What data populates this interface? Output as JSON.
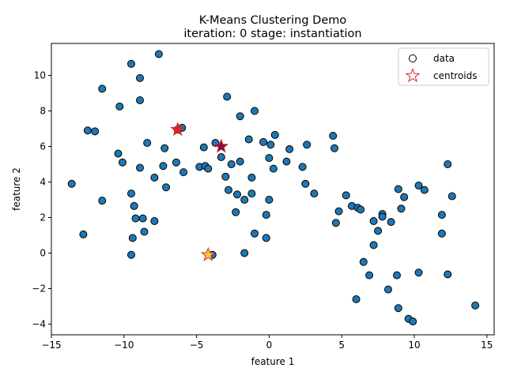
{
  "chart_data": {
    "type": "scatter",
    "title": "K-Means Clustering Demo",
    "subtitle": "iteration: 0 stage: instantiation",
    "xlabel": "feature 1",
    "ylabel": "feature 2",
    "xlim": [
      -15,
      15.5
    ],
    "ylim": [
      -4.6,
      11.8
    ],
    "xticks": [
      -15,
      -10,
      -5,
      0,
      5,
      10,
      15
    ],
    "yticks": [
      -4,
      -2,
      0,
      2,
      4,
      6,
      8,
      10
    ],
    "grid": false,
    "legend": {
      "position": "top-right",
      "entries": [
        "data",
        "centroids"
      ]
    },
    "colors": {
      "data_fill": "#1f77b4",
      "data_edge": "#000000",
      "centroid_edge": "#d62728"
    },
    "series": [
      {
        "name": "data",
        "points": [
          [
            -13.6,
            3.9
          ],
          [
            -12.8,
            1.05
          ],
          [
            -12.5,
            6.9
          ],
          [
            -12.0,
            6.85
          ],
          [
            -11.5,
            9.25
          ],
          [
            -11.5,
            2.95
          ],
          [
            -10.4,
            5.6
          ],
          [
            -10.3,
            8.25
          ],
          [
            -10.1,
            5.1
          ],
          [
            -9.5,
            10.65
          ],
          [
            -9.5,
            3.35
          ],
          [
            -9.5,
            -0.1
          ],
          [
            -9.4,
            0.85
          ],
          [
            -9.3,
            2.65
          ],
          [
            -9.2,
            1.95
          ],
          [
            -8.9,
            9.85
          ],
          [
            -8.9,
            8.6
          ],
          [
            -8.9,
            4.8
          ],
          [
            -8.7,
            1.95
          ],
          [
            -8.6,
            1.2
          ],
          [
            -8.4,
            6.2
          ],
          [
            -7.9,
            4.25
          ],
          [
            -7.9,
            1.8
          ],
          [
            -7.6,
            11.2
          ],
          [
            -7.3,
            4.9
          ],
          [
            -7.2,
            5.9
          ],
          [
            -7.1,
            3.7
          ],
          [
            -6.4,
            5.1
          ],
          [
            -6.3,
            6.95
          ],
          [
            -6.0,
            7.05
          ],
          [
            -5.9,
            4.55
          ],
          [
            -4.8,
            4.85
          ],
          [
            -4.5,
            5.95
          ],
          [
            -4.4,
            4.9
          ],
          [
            -4.2,
            4.75
          ],
          [
            -3.9,
            -0.1
          ],
          [
            -3.7,
            6.2
          ],
          [
            -3.3,
            5.4
          ],
          [
            -3.0,
            4.3
          ],
          [
            -2.9,
            8.8
          ],
          [
            -2.8,
            3.55
          ],
          [
            -2.6,
            5.0
          ],
          [
            -2.3,
            2.3
          ],
          [
            -2.2,
            3.3
          ],
          [
            -2.0,
            5.15
          ],
          [
            -2.0,
            7.7
          ],
          [
            -1.7,
            3.0
          ],
          [
            -1.7,
            0.0
          ],
          [
            -1.4,
            6.4
          ],
          [
            -1.2,
            4.25
          ],
          [
            -1.2,
            3.35
          ],
          [
            -1.0,
            1.1
          ],
          [
            -1.0,
            8.0
          ],
          [
            -0.4,
            6.25
          ],
          [
            -0.2,
            0.85
          ],
          [
            -0.2,
            2.15
          ],
          [
            0.0,
            5.35
          ],
          [
            0.0,
            3.0
          ],
          [
            0.1,
            6.1
          ],
          [
            0.3,
            4.75
          ],
          [
            0.4,
            6.65
          ],
          [
            1.2,
            5.15
          ],
          [
            1.4,
            5.85
          ],
          [
            2.3,
            4.85
          ],
          [
            2.5,
            3.9
          ],
          [
            2.6,
            6.1
          ],
          [
            3.1,
            3.35
          ],
          [
            4.4,
            6.6
          ],
          [
            4.5,
            5.9
          ],
          [
            4.6,
            1.7
          ],
          [
            4.8,
            2.35
          ],
          [
            5.3,
            3.25
          ],
          [
            5.7,
            2.65
          ],
          [
            6.0,
            -2.6
          ],
          [
            6.1,
            2.55
          ],
          [
            6.3,
            2.45
          ],
          [
            6.5,
            -0.5
          ],
          [
            6.9,
            -1.25
          ],
          [
            7.2,
            1.8
          ],
          [
            7.2,
            0.45
          ],
          [
            7.5,
            1.25
          ],
          [
            7.8,
            2.2
          ],
          [
            7.8,
            2.05
          ],
          [
            8.2,
            -2.05
          ],
          [
            8.4,
            1.75
          ],
          [
            8.8,
            -1.25
          ],
          [
            8.9,
            3.6
          ],
          [
            8.9,
            -3.1
          ],
          [
            9.1,
            2.5
          ],
          [
            9.3,
            3.15
          ],
          [
            9.6,
            -3.7
          ],
          [
            9.9,
            -3.85
          ],
          [
            10.3,
            3.8
          ],
          [
            10.3,
            -1.1
          ],
          [
            10.7,
            3.55
          ],
          [
            11.9,
            2.15
          ],
          [
            11.9,
            1.1
          ],
          [
            12.3,
            5.0
          ],
          [
            12.3,
            -1.2
          ],
          [
            12.6,
            3.2
          ],
          [
            14.2,
            -2.95
          ]
        ]
      },
      {
        "name": "centroids",
        "points": [
          {
            "x": -6.3,
            "y": 6.95,
            "color": "#d62728"
          },
          {
            "x": -3.3,
            "y": 6.0,
            "color": "#7b1040"
          },
          {
            "x": -4.2,
            "y": -0.1,
            "color": "#f2d33a"
          }
        ]
      }
    ]
  }
}
